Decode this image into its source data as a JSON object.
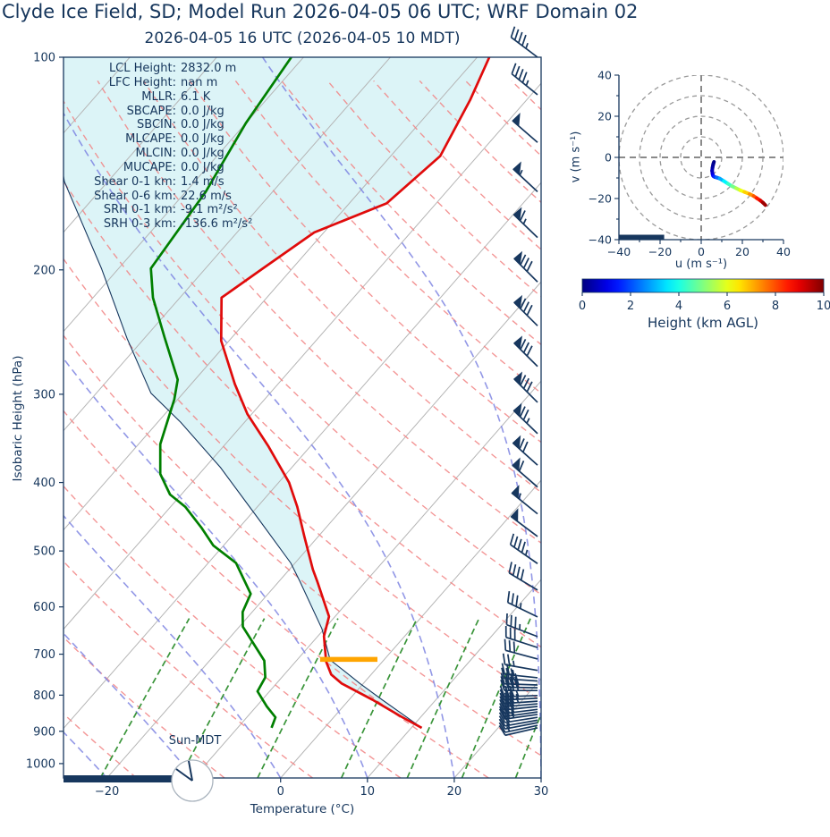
{
  "header": {
    "title": "Clyde Ice Field, SD; Model Run 2026-04-05 06 UTC; WRF Domain 02",
    "subtitle": "2026-04-05 16 UTC  (2026-04-05 10 MDT)"
  },
  "stats": [
    {
      "label": "LCL Height:",
      "value": "2832.0 m"
    },
    {
      "label": "LFC Height:",
      "value": "nan m"
    },
    {
      "label": "MLLR:",
      "value": "6.1 K"
    },
    {
      "label": "SBCAPE:",
      "value": "0.0 J/kg"
    },
    {
      "label": "SBCIN:",
      "value": "0.0 J/kg"
    },
    {
      "label": "MLCAPE:",
      "value": "0.0 J/kg"
    },
    {
      "label": "MLCIN:",
      "value": "0.0 J/kg"
    },
    {
      "label": "MUCAPE:",
      "value": "0.0 J/kg"
    },
    {
      "label": "Shear 0-1 km:",
      "value": "1.4 m/s"
    },
    {
      "label": "Shear 0-6 km:",
      "value": "22.6 m/s"
    },
    {
      "label": "SRH 0-1 km:",
      "value": "-9.1 m²/s²"
    },
    {
      "label": "SRH 0-3 km:",
      "value": "-136.6 m²/s²"
    }
  ],
  "skewt_labels": {
    "xlabel": "Temperature (°C)",
    "ylabel": "Isobaric Height (hPa)",
    "sun_label": "Sun-MDT"
  },
  "hodograph_labels": {
    "xlabel": "u (m s⁻¹)",
    "ylabel": "v (m s⁻¹)"
  },
  "colorbar": {
    "label": "Height (km AGL)",
    "ticks": [
      0,
      2,
      4,
      6,
      8,
      10
    ],
    "min": 0,
    "max": 10
  },
  "chart_data": {
    "type": "skewt_sounding",
    "skewt": {
      "xlabel": "Temperature (°C)",
      "ylabel": "Isobaric Height (hPa)",
      "xlim": [
        -25,
        30
      ],
      "plim": [
        100,
        1048
      ],
      "x_ticks": [
        -20,
        -10,
        0,
        10,
        20,
        30
      ],
      "p_ticks": [
        100,
        200,
        300,
        400,
        500,
        600,
        700,
        800,
        900,
        1000
      ],
      "mixing_ratio_lines_g_kg": [
        0.7,
        1.5,
        3,
        6,
        10,
        15,
        22,
        30
      ],
      "temperature_profile": [
        [
          890,
          11.2
        ],
        [
          857,
          7.6
        ],
        [
          812,
          2.7
        ],
        [
          770,
          -2.5
        ],
        [
          748,
          -4.6
        ],
        [
          717,
          -6.5
        ],
        [
          660,
          -9.3
        ],
        [
          619,
          -10.7
        ],
        [
          552,
          -15.6
        ],
        [
          531,
          -17.3
        ],
        [
          477,
          -21.6
        ],
        [
          433,
          -25.4
        ],
        [
          400,
          -28.8
        ],
        [
          355,
          -34.9
        ],
        [
          320,
          -40.5
        ],
        [
          290,
          -45.0
        ],
        [
          252,
          -50.9
        ],
        [
          219,
          -55.2
        ],
        [
          199,
          -53.4
        ],
        [
          177,
          -51.1
        ],
        [
          161,
          -45.7
        ],
        [
          138,
          -44.3
        ],
        [
          115,
          -46.5
        ],
        [
          100,
          -48.6
        ]
      ],
      "dewpoint_profile": [
        [
          890,
          -6.1
        ],
        [
          860,
          -6.7
        ],
        [
          830,
          -8.8
        ],
        [
          790,
          -11.4
        ],
        [
          755,
          -11.9
        ],
        [
          715,
          -13.7
        ],
        [
          695,
          -15.2
        ],
        [
          640,
          -19.6
        ],
        [
          610,
          -21.1
        ],
        [
          575,
          -22.0
        ],
        [
          520,
          -26.8
        ],
        [
          491,
          -31.2
        ],
        [
          463,
          -34.4
        ],
        [
          433,
          -38.3
        ],
        [
          416,
          -41.3
        ],
        [
          389,
          -44.5
        ],
        [
          353,
          -47.5
        ],
        [
          324,
          -49.2
        ],
        [
          305,
          -50.4
        ],
        [
          286,
          -52.0
        ],
        [
          249,
          -57.8
        ],
        [
          219,
          -63.1
        ],
        [
          199,
          -66.3
        ],
        [
          155,
          -67.7
        ],
        [
          124,
          -70.0
        ],
        [
          100,
          -71.4
        ]
      ],
      "parcel_profile": [
        [
          890,
          11.2
        ],
        [
          850,
          7.5
        ],
        [
          812,
          3.8
        ],
        [
          770,
          -0.4
        ],
        [
          740,
          -3.4
        ],
        [
          713,
          -6.2
        ],
        [
          644,
          -10.3
        ],
        [
          552,
          -17.6
        ],
        [
          520,
          -20.5
        ],
        [
          450,
          -28.7
        ],
        [
          381,
          -38.2
        ],
        [
          329,
          -47.3
        ],
        [
          299,
          -53.7
        ],
        [
          250,
          -62
        ],
        [
          199,
          -72
        ],
        [
          150,
          -85
        ],
        [
          100,
          -100
        ]
      ],
      "lcl_bar": {
        "p": 712,
        "t_center": -4.1,
        "half_width_c": 3.3,
        "color": "#ffa500"
      },
      "wind_barbs_p_kt_dir": [
        [
          100,
          45,
          307
        ],
        [
          113,
          45,
          309
        ],
        [
          132,
          50,
          311
        ],
        [
          155,
          55,
          313
        ],
        [
          180,
          65,
          314
        ],
        [
          208,
          78,
          315
        ],
        [
          240,
          80,
          315
        ],
        [
          274,
          83,
          315
        ],
        [
          308,
          80,
          315
        ],
        [
          341,
          75,
          314
        ],
        [
          378,
          68,
          312
        ],
        [
          406,
          60,
          311
        ],
        [
          443,
          55,
          309
        ],
        [
          477,
          50,
          307
        ],
        [
          521,
          45,
          305
        ],
        [
          568,
          42,
          301
        ],
        [
          620,
          36,
          296
        ],
        [
          661,
          34,
          291
        ],
        [
          685,
          30,
          288
        ],
        [
          711,
          28,
          285
        ],
        [
          738,
          26,
          280
        ],
        [
          756,
          25,
          276
        ],
        [
          764,
          30,
          274
        ],
        [
          774,
          38,
          272
        ],
        [
          781,
          38,
          271
        ],
        [
          788,
          38,
          270
        ],
        [
          801,
          36,
          268
        ],
        [
          808,
          35,
          267
        ],
        [
          816,
          34,
          266
        ],
        [
          823,
          32,
          265
        ],
        [
          830,
          30,
          264
        ],
        [
          838,
          28,
          263
        ],
        [
          845,
          26,
          262
        ],
        [
          852,
          24,
          262
        ],
        [
          860,
          22,
          261
        ],
        [
          868,
          18,
          260
        ],
        [
          875,
          16,
          259
        ],
        [
          883,
          14,
          258
        ],
        [
          890,
          12,
          257
        ]
      ],
      "sun_bar": {
        "x_from_c": -25,
        "x_to_c": -12.5,
        "label": "Sun-MDT"
      }
    },
    "hodograph": {
      "xlabel": "u (m s⁻¹)",
      "ylabel": "v (m s⁻¹)",
      "xlim": [
        -40,
        40
      ],
      "ylim": [
        -40,
        40
      ],
      "ticks": [
        -40,
        -20,
        0,
        20,
        40
      ],
      "rings": [
        10,
        20,
        30,
        40
      ],
      "trace_u_v_hkm": [
        [
          6.2,
          -2.2,
          0.05
        ],
        [
          6.0,
          -2.8,
          0.1
        ],
        [
          5.8,
          -3.5,
          0.15
        ],
        [
          5.5,
          -5,
          0.3
        ],
        [
          5.3,
          -6.5,
          0.5
        ],
        [
          5.5,
          -8,
          0.8
        ],
        [
          5.8,
          -9,
          1.1
        ],
        [
          6.5,
          -9.5,
          1.5
        ],
        [
          7.5,
          -9.8,
          2
        ],
        [
          9,
          -10.3,
          2.6
        ],
        [
          11,
          -11.5,
          3.3
        ],
        [
          13,
          -12.8,
          4
        ],
        [
          15,
          -14,
          4.6
        ],
        [
          17,
          -15,
          5.2
        ],
        [
          19,
          -16,
          5.8
        ],
        [
          21,
          -16.8,
          6.4
        ],
        [
          23.5,
          -17.8,
          7
        ],
        [
          25.5,
          -18.8,
          7.6
        ],
        [
          27,
          -19.8,
          8.2
        ],
        [
          28.8,
          -21,
          8.8
        ],
        [
          30,
          -22,
          9.4
        ],
        [
          31.2,
          -23.2,
          10
        ]
      ],
      "bar_u_from_to": [
        -40,
        -18
      ]
    },
    "colorbar": {
      "label": "Height (km AGL)",
      "min": 0,
      "max": 10,
      "ticks": [
        0,
        2,
        4,
        6,
        8,
        10
      ],
      "colormap": "jet"
    }
  },
  "colors": {
    "text": "#16365c",
    "temperature_line": "#e00b0b",
    "dewpoint_line": "#007f00",
    "parcel_line": "#17375e",
    "cin_fill": "#dcf4f7",
    "isotherm": "#b5b5b5",
    "dry_adiabat": "#f28484",
    "moist_adiabat": "#7f86e2",
    "mixing_ratio": "#2f8f2f",
    "barb": "#17375e",
    "lcl_marker": "#ffa500",
    "frame": "#17375e"
  }
}
